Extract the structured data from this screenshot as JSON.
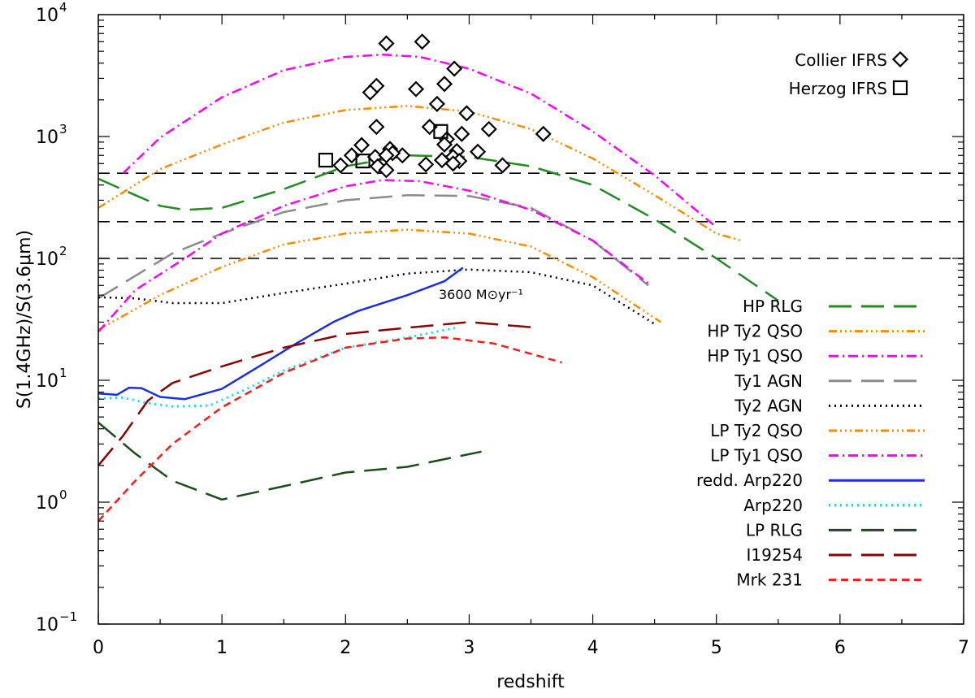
{
  "chart_data": {
    "type": "line",
    "xlabel": "redshift",
    "ylabel": "S(1.4GHz)/S(3.6μm)",
    "xlim": [
      0,
      7
    ],
    "ylim": [
      0.1,
      10000
    ],
    "yscale": "log",
    "x_ticks": [
      "0",
      "1",
      "2",
      "3",
      "4",
      "5",
      "6",
      "7"
    ],
    "y_ticks": [
      {
        "value": 0.1,
        "base": "10",
        "exp": "−1"
      },
      {
        "value": 1,
        "base": "10",
        "exp": "0"
      },
      {
        "value": 10,
        "base": "10",
        "exp": "1"
      },
      {
        "value": 100,
        "base": "10",
        "exp": "2"
      },
      {
        "value": 1000,
        "base": "10",
        "exp": "3"
      },
      {
        "value": 10000,
        "base": "10",
        "exp": "4"
      }
    ],
    "hlines": [
      100,
      200,
      500
    ],
    "annotations": [
      {
        "text": "3600 M⊙yr⁻¹",
        "x": 3.3,
        "y": 62
      }
    ],
    "series": [
      {
        "name": "HP RLG",
        "color": "#228B22",
        "dash": "28 12",
        "width": 2.5,
        "x": [
          0,
          0.3,
          0.5,
          0.7,
          1.0,
          1.5,
          2.0,
          2.5,
          3.0,
          3.5,
          4.0,
          4.5,
          5.0,
          5.5
        ],
        "y": [
          450,
          330,
          270,
          250,
          260,
          370,
          570,
          700,
          680,
          570,
          400,
          210,
          100,
          45
        ]
      },
      {
        "name": "HP Ty2 QSO",
        "color": "#FF8C00",
        "dash": "10 4 2 4 2 4 2 4",
        "width": 2.5,
        "x": [
          0,
          0.5,
          1.0,
          1.5,
          2.0,
          2.5,
          3.0,
          3.5,
          4.0,
          4.5,
          5.0,
          5.2
        ],
        "y": [
          260,
          540,
          860,
          1300,
          1650,
          1780,
          1600,
          1150,
          660,
          330,
          160,
          140
        ]
      },
      {
        "name": "HP Ty1 QSO",
        "color": "#FF00FF",
        "dash": "12 5 2 5",
        "width": 2.5,
        "x": [
          0.2,
          0.5,
          1.0,
          1.5,
          2.0,
          2.3,
          2.6,
          3.0,
          3.5,
          4.0,
          4.5,
          5.0
        ],
        "y": [
          500,
          980,
          2100,
          3500,
          4500,
          4700,
          4500,
          3600,
          2250,
          1100,
          480,
          180
        ]
      },
      {
        "name": "Ty1 AGN",
        "color": "#8C8C8C",
        "dash": "28 12",
        "width": 2.5,
        "x": [
          0,
          0.3,
          0.6,
          1.0,
          1.5,
          2.0,
          2.5,
          3.0,
          3.5,
          4.0,
          4.45
        ],
        "y": [
          47,
          72,
          110,
          160,
          240,
          300,
          330,
          325,
          260,
          140,
          60
        ]
      },
      {
        "name": "Ty2 AGN",
        "color": "#000000",
        "dash": "2 5",
        "width": 2.5,
        "x": [
          0,
          0.3,
          0.6,
          1.0,
          1.5,
          2.0,
          2.5,
          3.0,
          3.5,
          4.0,
          4.5
        ],
        "y": [
          48,
          47,
          43,
          43,
          52,
          62,
          75,
          81,
          77,
          60,
          29
        ]
      },
      {
        "name": "LP Ty2 QSO",
        "color": "#FF8C00",
        "dash": "10 4 2 4 2 4 2 4",
        "width": 2.5,
        "x": [
          0,
          0.5,
          1.0,
          1.5,
          2.0,
          2.5,
          3.0,
          3.5,
          4.0,
          4.55
        ],
        "y": [
          26,
          50,
          85,
          130,
          160,
          172,
          160,
          125,
          70,
          30
        ]
      },
      {
        "name": "LP Ty1 QSO",
        "color": "#FF00FF",
        "dash": "12 5 2 5",
        "width": 2.5,
        "x": [
          0,
          0.3,
          0.7,
          1.0,
          1.5,
          2.0,
          2.3,
          2.6,
          3.0,
          3.5,
          4.0,
          4.45
        ],
        "y": [
          25,
          55,
          100,
          160,
          270,
          390,
          440,
          430,
          360,
          250,
          140,
          62
        ]
      },
      {
        "name": "redd. Arp220",
        "color": "#1C2FE0",
        "dash": "",
        "width": 2.5,
        "x": [
          0,
          0.15,
          0.25,
          0.35,
          0.5,
          0.7,
          1.0,
          1.3,
          1.6,
          1.9,
          2.1,
          2.5,
          2.8,
          2.95
        ],
        "y": [
          7.8,
          7.6,
          8.7,
          8.6,
          7.3,
          7.0,
          8.5,
          13,
          20,
          30,
          37,
          50,
          65,
          84
        ]
      },
      {
        "name": "Arp220",
        "color": "#00E5FF",
        "dash": "2 5",
        "width": 3,
        "x": [
          0,
          0.2,
          0.4,
          0.6,
          0.9,
          1.2,
          1.5,
          2.0,
          2.5,
          2.9
        ],
        "y": [
          7.1,
          7.2,
          6.5,
          6.1,
          6.2,
          8.5,
          12,
          18.5,
          22.5,
          27
        ]
      },
      {
        "name": "LP RLG",
        "color": "#1A4D1A",
        "dash": "28 12",
        "width": 2.5,
        "x": [
          0,
          0.3,
          0.6,
          1.0,
          1.5,
          2.0,
          2.5,
          3.1
        ],
        "y": [
          4.5,
          2.5,
          1.5,
          1.05,
          1.35,
          1.75,
          1.95,
          2.6
        ]
      },
      {
        "name": "I19254",
        "color": "#8B0000",
        "dash": "28 12",
        "width": 2.5,
        "x": [
          0,
          0.2,
          0.4,
          0.6,
          1.0,
          1.5,
          2.0,
          2.5,
          3.0,
          3.55
        ],
        "y": [
          2.0,
          3.5,
          6.8,
          9.5,
          13,
          18.5,
          24,
          27,
          30,
          27
        ]
      },
      {
        "name": "Mrk 231",
        "color": "#FF1A1A",
        "dash": "9 6",
        "width": 2.5,
        "x": [
          0,
          0.3,
          0.6,
          1.0,
          1.5,
          2.0,
          2.5,
          2.8,
          3.2,
          3.75
        ],
        "y": [
          0.7,
          1.5,
          3.0,
          6.0,
          11.5,
          18.5,
          22,
          22.5,
          20,
          14
        ]
      }
    ],
    "scatter": [
      {
        "name": "Collier IFRS",
        "marker": "diamond",
        "points": [
          [
            2.33,
            5800
          ],
          [
            2.62,
            6000
          ],
          [
            2.88,
            3600
          ],
          [
            2.25,
            2600
          ],
          [
            2.2,
            2300
          ],
          [
            2.57,
            2450
          ],
          [
            2.8,
            2700
          ],
          [
            2.74,
            1850
          ],
          [
            2.98,
            1550
          ],
          [
            2.68,
            1200
          ],
          [
            2.94,
            1050
          ],
          [
            2.25,
            1200
          ],
          [
            3.16,
            1150
          ],
          [
            3.6,
            1050
          ],
          [
            2.82,
            950
          ],
          [
            2.8,
            860
          ],
          [
            2.9,
            760
          ],
          [
            3.07,
            750
          ],
          [
            2.13,
            850
          ],
          [
            2.36,
            790
          ],
          [
            2.46,
            700
          ],
          [
            2.05,
            700
          ],
          [
            2.24,
            680
          ],
          [
            2.38,
            730
          ],
          [
            2.33,
            700
          ],
          [
            2.87,
            680
          ],
          [
            2.78,
            640
          ],
          [
            2.92,
            630
          ],
          [
            2.65,
            590
          ],
          [
            1.96,
            580
          ],
          [
            2.26,
            570
          ],
          [
            3.27,
            580
          ],
          [
            2.87,
            600
          ],
          [
            2.33,
            530
          ]
        ]
      },
      {
        "name": "Herzog IFRS",
        "marker": "square",
        "points": [
          [
            1.84,
            640
          ],
          [
            2.14,
            630
          ],
          [
            2.77,
            1100
          ]
        ]
      }
    ],
    "legend": {
      "placement": "bottom-right and top-right"
    }
  }
}
